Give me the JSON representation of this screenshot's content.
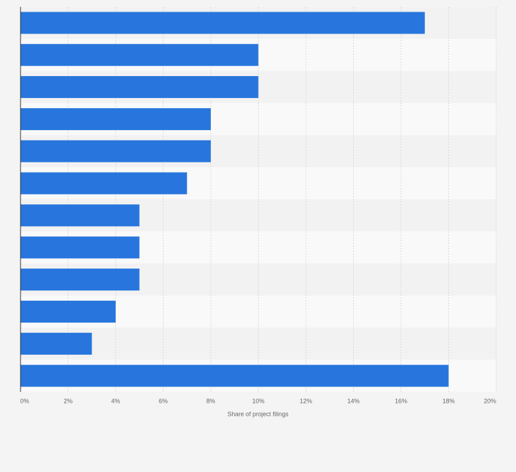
{
  "chart_data": {
    "type": "bar",
    "orientation": "horizontal",
    "categories": [
      null,
      null,
      null,
      null,
      null,
      null,
      null,
      null,
      null,
      null,
      null,
      null
    ],
    "values": [
      17,
      10,
      10,
      8,
      8,
      7,
      5,
      5,
      5,
      4,
      3,
      18
    ],
    "color": "#2876dd",
    "xlabel": "Share of project filings",
    "xlim": [
      0,
      20
    ],
    "xticks": [
      {
        "value": 0,
        "label": "0%"
      },
      {
        "value": 2,
        "label": "2%"
      },
      {
        "value": 4,
        "label": "4%"
      },
      {
        "value": 6,
        "label": "6%"
      },
      {
        "value": 8,
        "label": "8%"
      },
      {
        "value": 10,
        "label": "10%"
      },
      {
        "value": 12,
        "label": "12%"
      },
      {
        "value": 14,
        "label": "14%"
      },
      {
        "value": 16,
        "label": "16%"
      },
      {
        "value": 18,
        "label": "18%"
      },
      {
        "value": 20,
        "label": "20%"
      }
    ],
    "grid": true
  }
}
